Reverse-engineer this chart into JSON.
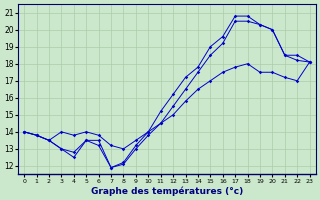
{
  "xlabel": "Graphe des températures (°c)",
  "xlim": [
    -0.5,
    23.5
  ],
  "ylim": [
    11.5,
    21.5
  ],
  "xticks": [
    0,
    1,
    2,
    3,
    4,
    5,
    6,
    7,
    8,
    9,
    10,
    11,
    12,
    13,
    14,
    15,
    16,
    17,
    18,
    19,
    20,
    21,
    22,
    23
  ],
  "yticks": [
    12,
    13,
    14,
    15,
    16,
    17,
    18,
    19,
    20,
    21
  ],
  "background_color": "#cce8cc",
  "grid_color": "#aaccaa",
  "line_color": "#0000cc",
  "series": [
    [
      14.0,
      13.8,
      13.5,
      14.0,
      13.8,
      14.0,
      13.8,
      13.2,
      13.0,
      13.5,
      14.0,
      14.5,
      15.0,
      15.8,
      16.5,
      17.0,
      17.5,
      17.8,
      18.0,
      17.5,
      17.5,
      17.2,
      17.0,
      18.1
    ],
    [
      14.0,
      13.8,
      13.5,
      13.0,
      12.8,
      13.5,
      13.5,
      11.9,
      12.1,
      13.0,
      13.8,
      14.5,
      15.5,
      16.5,
      17.5,
      18.5,
      19.2,
      20.5,
      20.5,
      20.3,
      20.0,
      18.5,
      18.5,
      18.1
    ],
    [
      14.0,
      13.8,
      13.5,
      13.0,
      12.5,
      13.5,
      13.2,
      11.9,
      12.2,
      13.2,
      14.0,
      15.2,
      16.2,
      17.2,
      17.8,
      19.0,
      19.6,
      20.8,
      20.8,
      20.3,
      20.0,
      18.5,
      18.2,
      18.1
    ]
  ]
}
